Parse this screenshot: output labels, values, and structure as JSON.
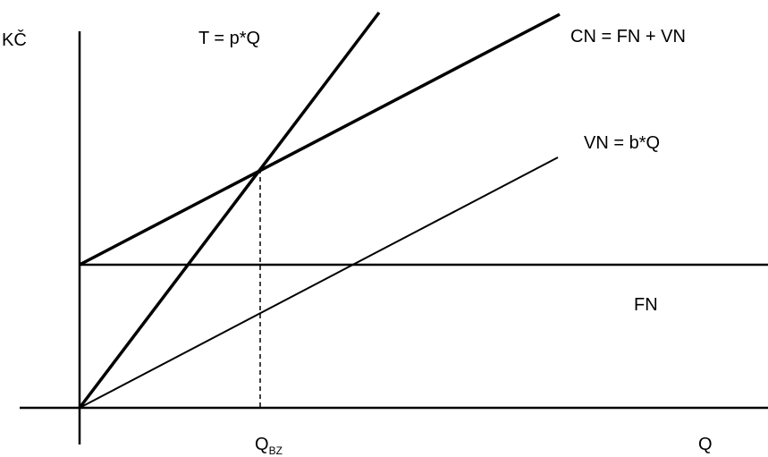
{
  "diagram": {
    "y_axis_label": "KČ",
    "x_axis_label": "Q",
    "break_even": {
      "label_main": "Q",
      "label_sub": "BZ"
    },
    "lines": {
      "revenue": "T = p*Q",
      "total_cost": "CN = FN + VN",
      "variable_cost": "VN = b*Q",
      "fixed_cost": "FN"
    },
    "colors": {
      "ink": "#000000",
      "background": "#ffffff"
    }
  }
}
